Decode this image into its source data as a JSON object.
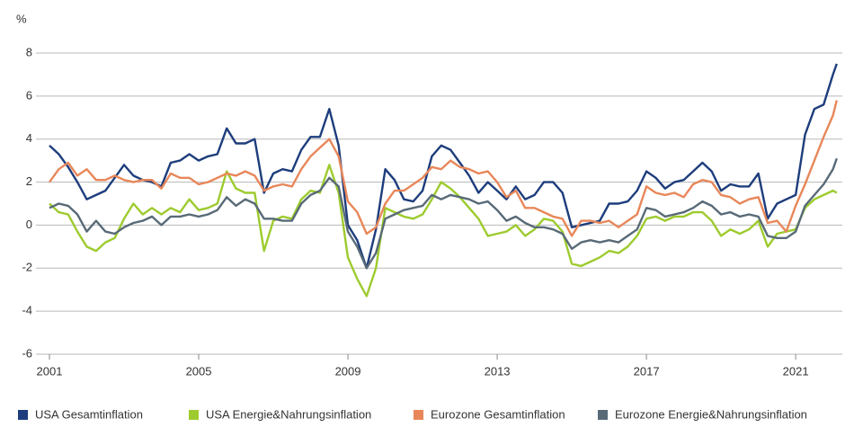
{
  "chart_data": {
    "type": "line",
    "y_label": "%",
    "x": [
      2001,
      2001.25,
      2001.5,
      2001.75,
      2002,
      2002.25,
      2002.5,
      2002.75,
      2003,
      2003.25,
      2003.5,
      2003.75,
      2004,
      2004.25,
      2004.5,
      2004.75,
      2005,
      2005.25,
      2005.5,
      2005.75,
      2006,
      2006.25,
      2006.5,
      2006.75,
      2007,
      2007.25,
      2007.5,
      2007.75,
      2008,
      2008.25,
      2008.5,
      2008.75,
      2009,
      2009.25,
      2009.5,
      2009.75,
      2010,
      2010.25,
      2010.5,
      2010.75,
      2011,
      2011.25,
      2011.5,
      2011.75,
      2012,
      2012.25,
      2012.5,
      2012.75,
      2013,
      2013.25,
      2013.5,
      2013.75,
      2014,
      2014.25,
      2014.5,
      2014.75,
      2015,
      2015.25,
      2015.5,
      2015.75,
      2016,
      2016.25,
      2016.5,
      2016.75,
      2017,
      2017.25,
      2017.5,
      2017.75,
      2018,
      2018.25,
      2018.5,
      2018.75,
      2019,
      2019.25,
      2019.5,
      2019.75,
      2020,
      2020.25,
      2020.5,
      2020.75,
      2021,
      2021.25,
      2021.5,
      2021.75,
      2022,
      2022.1
    ],
    "series": [
      {
        "name": "USA Gesamtinflation",
        "color": "#1d3d7c",
        "values": [
          3.7,
          3.3,
          2.7,
          2.0,
          1.2,
          1.4,
          1.6,
          2.2,
          2.8,
          2.3,
          2.1,
          2.0,
          1.8,
          2.9,
          3.0,
          3.3,
          3.0,
          3.2,
          3.3,
          4.5,
          3.8,
          3.8,
          4.0,
          1.5,
          2.4,
          2.6,
          2.5,
          3.5,
          4.1,
          4.1,
          5.4,
          3.7,
          0.0,
          -0.7,
          -2.0,
          -0.2,
          2.6,
          2.1,
          1.2,
          1.1,
          1.6,
          3.2,
          3.7,
          3.5,
          2.9,
          2.3,
          1.5,
          2.0,
          1.6,
          1.2,
          1.8,
          1.2,
          1.4,
          2.0,
          2.0,
          1.5,
          -0.1,
          0.0,
          0.1,
          0.2,
          1.0,
          1.0,
          1.1,
          1.6,
          2.5,
          2.2,
          1.7,
          2.0,
          2.1,
          2.5,
          2.9,
          2.5,
          1.6,
          1.9,
          1.8,
          1.8,
          2.4,
          0.3,
          1.0,
          1.2,
          1.4,
          4.2,
          5.4,
          5.6,
          7.0,
          7.5
        ]
      },
      {
        "name": "USA Energie&Nahrungsinflation",
        "color": "#9dcb2e",
        "values": [
          1.0,
          0.6,
          0.5,
          -0.3,
          -1.0,
          -1.2,
          -0.8,
          -0.6,
          0.3,
          1.0,
          0.5,
          0.8,
          0.5,
          0.8,
          0.6,
          1.2,
          0.7,
          0.8,
          1.0,
          2.5,
          1.7,
          1.5,
          1.5,
          -1.2,
          0.2,
          0.4,
          0.3,
          1.2,
          1.6,
          1.5,
          2.8,
          1.5,
          -1.5,
          -2.5,
          -3.3,
          -2.0,
          0.8,
          0.6,
          0.4,
          0.3,
          0.5,
          1.2,
          2.0,
          1.7,
          1.3,
          0.8,
          0.3,
          -0.5,
          -0.4,
          -0.3,
          0.0,
          -0.5,
          -0.2,
          0.3,
          0.2,
          -0.3,
          -1.8,
          -1.9,
          -1.7,
          -1.5,
          -1.2,
          -1.3,
          -1.0,
          -0.5,
          0.3,
          0.4,
          0.2,
          0.4,
          0.4,
          0.6,
          0.6,
          0.2,
          -0.5,
          -0.2,
          -0.4,
          -0.2,
          0.2,
          -1.0,
          -0.4,
          -0.3,
          -0.2,
          0.8,
          1.2,
          1.4,
          1.6,
          1.5
        ]
      },
      {
        "name": "Eurozone Gesamtinflation",
        "color": "#e8875a",
        "values": [
          2.0,
          2.6,
          2.9,
          2.3,
          2.6,
          2.1,
          2.1,
          2.3,
          2.1,
          2.0,
          2.1,
          2.1,
          1.7,
          2.4,
          2.2,
          2.2,
          1.9,
          2.0,
          2.2,
          2.4,
          2.3,
          2.5,
          2.3,
          1.6,
          1.8,
          1.9,
          1.8,
          2.6,
          3.2,
          3.6,
          4.0,
          3.2,
          1.1,
          0.6,
          -0.4,
          -0.1,
          1.0,
          1.6,
          1.6,
          1.9,
          2.2,
          2.7,
          2.6,
          3.0,
          2.7,
          2.6,
          2.4,
          2.5,
          2.0,
          1.3,
          1.6,
          0.8,
          0.8,
          0.6,
          0.4,
          0.3,
          -0.5,
          0.2,
          0.2,
          0.1,
          0.2,
          -0.1,
          0.2,
          0.5,
          1.8,
          1.5,
          1.4,
          1.5,
          1.3,
          1.9,
          2.1,
          2.0,
          1.4,
          1.3,
          1.0,
          1.2,
          1.3,
          0.1,
          0.2,
          -0.3,
          0.9,
          1.9,
          3.0,
          4.1,
          5.1,
          5.8
        ]
      },
      {
        "name": "Eurozone Energie&Nahrungsinflation",
        "color": "#586a77",
        "values": [
          0.8,
          1.0,
          0.9,
          0.5,
          -0.3,
          0.2,
          -0.3,
          -0.4,
          -0.1,
          0.1,
          0.2,
          0.4,
          0.0,
          0.4,
          0.4,
          0.5,
          0.4,
          0.5,
          0.7,
          1.3,
          0.9,
          1.2,
          1.0,
          0.3,
          0.3,
          0.2,
          0.2,
          1.0,
          1.4,
          1.6,
          2.2,
          1.8,
          -0.3,
          -1.0,
          -2.0,
          -1.3,
          0.3,
          0.5,
          0.7,
          0.8,
          0.9,
          1.4,
          1.2,
          1.4,
          1.3,
          1.2,
          1.0,
          1.1,
          0.7,
          0.2,
          0.4,
          0.1,
          -0.1,
          -0.1,
          -0.2,
          -0.4,
          -1.1,
          -0.8,
          -0.7,
          -0.8,
          -0.7,
          -0.8,
          -0.5,
          -0.2,
          0.8,
          0.7,
          0.4,
          0.5,
          0.6,
          0.8,
          1.1,
          0.9,
          0.5,
          0.6,
          0.4,
          0.5,
          0.4,
          -0.5,
          -0.6,
          -0.6,
          -0.3,
          0.9,
          1.4,
          1.9,
          2.6,
          3.1
        ]
      }
    ],
    "xlim": [
      2001,
      2022.25
    ],
    "xticks": [
      2001,
      2005,
      2009,
      2013,
      2017,
      2021
    ],
    "ylim": [
      -6,
      8
    ],
    "yticks": [
      -6,
      -4,
      -2,
      0,
      2,
      4,
      6,
      8
    ],
    "grid": true
  }
}
